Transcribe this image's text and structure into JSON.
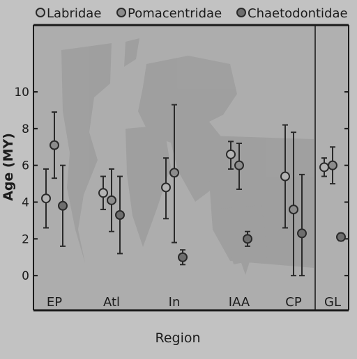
{
  "chart_data": {
    "type": "scatter",
    "subtype": "point-with-error-bars",
    "title": "",
    "xlabel": "Region",
    "ylabel": "Age (MY)",
    "ylim": [
      -0.6,
      12.5
    ],
    "yticks": [
      0,
      2,
      4,
      6,
      8,
      10
    ],
    "categories": [
      "EP",
      "Atl",
      "In",
      "IAA",
      "CP",
      "GL"
    ],
    "legend_position": "top",
    "grid": false,
    "panel_background": "#adadad",
    "highlighted_region": "GL",
    "map_silhouette": true,
    "series": [
      {
        "name": "Labridae",
        "marker": "open-circle",
        "color": "#b4b4b4",
        "points": [
          {
            "x": "EP",
            "y": 4.2,
            "low": 2.6,
            "high": 5.8
          },
          {
            "x": "Atl",
            "y": 4.5,
            "low": 3.6,
            "high": 5.4
          },
          {
            "x": "In",
            "y": 4.8,
            "low": 3.1,
            "high": 6.4
          },
          {
            "x": "IAA",
            "y": 6.6,
            "low": 5.8,
            "high": 7.3
          },
          {
            "x": "CP",
            "y": 5.4,
            "low": 2.6,
            "high": 8.2
          },
          {
            "x": "GL",
            "y": 5.9,
            "low": 5.4,
            "high": 6.4
          }
        ]
      },
      {
        "name": "Pomacentridae",
        "marker": "filled-circle",
        "color": "#8c8c8c",
        "points": [
          {
            "x": "EP",
            "y": 7.1,
            "low": 5.3,
            "high": 8.9
          },
          {
            "x": "Atl",
            "y": 4.1,
            "low": 2.4,
            "high": 5.8
          },
          {
            "x": "In",
            "y": 5.6,
            "low": 1.8,
            "high": 9.3
          },
          {
            "x": "IAA",
            "y": 6.0,
            "low": 4.7,
            "high": 7.2
          },
          {
            "x": "CP",
            "y": 3.6,
            "low": 0.0,
            "high": 7.8
          },
          {
            "x": "GL",
            "y": 6.0,
            "low": 5.0,
            "high": 7.0
          }
        ]
      },
      {
        "name": "Chaetodontidae",
        "marker": "filled-circle",
        "color": "#6e6e6e",
        "points": [
          {
            "x": "EP",
            "y": 3.8,
            "low": 1.6,
            "high": 6.0
          },
          {
            "x": "Atl",
            "y": 3.3,
            "low": 1.2,
            "high": 5.4
          },
          {
            "x": "In",
            "y": 1.0,
            "low": 0.6,
            "high": 1.4
          },
          {
            "x": "IAA",
            "y": 2.0,
            "low": 1.6,
            "high": 2.4
          },
          {
            "x": "CP",
            "y": 2.3,
            "low": 0.0,
            "high": 5.5
          },
          {
            "x": "GL",
            "y": 2.1,
            "low": 1.9,
            "high": 2.3
          }
        ]
      }
    ]
  }
}
